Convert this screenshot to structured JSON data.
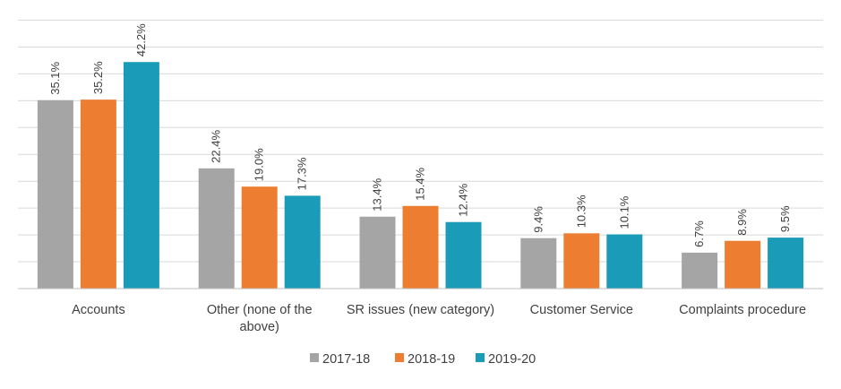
{
  "chart_data": {
    "type": "bar",
    "title": "",
    "xlabel": "",
    "ylabel": "",
    "ylim": [
      0,
      50
    ],
    "grid": true,
    "legend_position": "bottom",
    "categories": [
      [
        "Accounts"
      ],
      [
        "Other (none of the",
        "above)"
      ],
      [
        "SR issues (new category)"
      ],
      [
        "Customer Service"
      ],
      [
        "Complaints procedure"
      ]
    ],
    "series": [
      {
        "name": "2017-18",
        "color": "#a5a5a5",
        "values": [
          35.1,
          22.4,
          13.4,
          9.4,
          6.7
        ],
        "labels": [
          "35.1%",
          "22.4%",
          "13.4%",
          "9.4%",
          "6.7%"
        ]
      },
      {
        "name": "2018-19",
        "color": "#ed7d31",
        "values": [
          35.2,
          19.0,
          15.4,
          10.3,
          8.9
        ],
        "labels": [
          "35.2%",
          "19.0%",
          "15.4%",
          "10.3%",
          "8.9%"
        ]
      },
      {
        "name": "2019-20",
        "color": "#1a9bb8",
        "values": [
          42.2,
          17.3,
          12.4,
          10.1,
          9.5
        ],
        "labels": [
          "42.2%",
          "17.3%",
          "12.4%",
          "10.1%",
          "9.5%"
        ]
      }
    ]
  }
}
